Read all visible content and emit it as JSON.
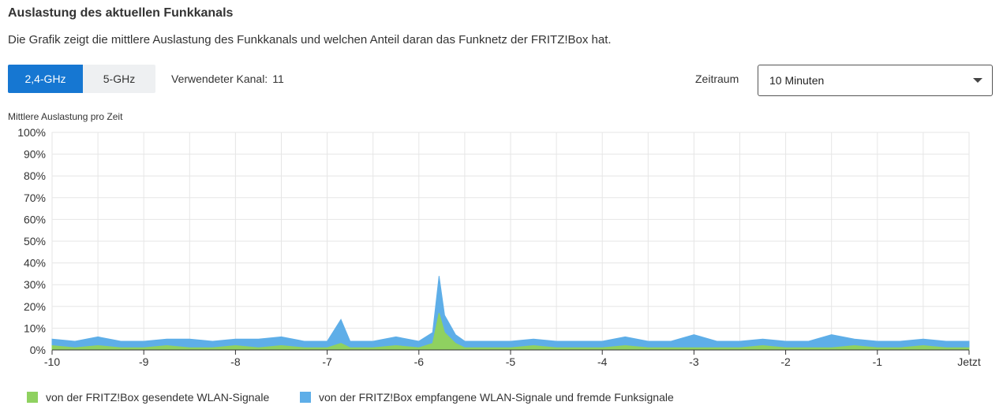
{
  "header": {
    "title": "Auslastung des aktuellen Funkkanals",
    "description": "Die Grafik zeigt die mittlere Auslastung des Funkkanals und welchen Anteil daran das Funknetz der FRITZ!Box hat."
  },
  "controls": {
    "bands": [
      {
        "label": "2,4-GHz",
        "active": true
      },
      {
        "label": "5-GHz",
        "active": false
      }
    ],
    "channel_label": "Verwendeter Kanal:",
    "channel_value": "11",
    "zeitraum_label": "Zeitraum",
    "zeitraum_value": "10 Minuten"
  },
  "chart_title": "Mittlere Auslastung pro Zeit",
  "colors": {
    "accent": "#1677d2",
    "series_sent": "#8fd160",
    "series_received": "#5eaee8",
    "grid": "#e6e6e6"
  },
  "chart_data": {
    "type": "area",
    "stacked": true,
    "title": "Mittlere Auslastung pro Zeit",
    "xlim": [
      -10,
      0
    ],
    "ylim": [
      0,
      100
    ],
    "yticks": [
      "0%",
      "10%",
      "20%",
      "30%",
      "40%",
      "50%",
      "60%",
      "70%",
      "80%",
      "90%",
      "100%"
    ],
    "xticks": [
      "-10",
      "-9",
      "-8",
      "-7",
      "-6",
      "-5",
      "-4",
      "-3",
      "-2",
      "-1",
      "Jetzt"
    ],
    "grid": true,
    "legend_position": "bottom",
    "series": [
      {
        "name": "von der FRITZ!Box gesendete WLAN-Signale",
        "color": "#8fd160",
        "x": [
          -10,
          -9.75,
          -9.5,
          -9.25,
          -9,
          -8.75,
          -8.5,
          -8.25,
          -8,
          -7.75,
          -7.5,
          -7.25,
          -7,
          -6.85,
          -6.75,
          -6.5,
          -6.25,
          -6,
          -5.85,
          -5.78,
          -5.72,
          -5.6,
          -5.5,
          -5.25,
          -5,
          -4.75,
          -4.5,
          -4.25,
          -4,
          -3.75,
          -3.5,
          -3.25,
          -3,
          -2.75,
          -2.5,
          -2.25,
          -2,
          -1.75,
          -1.5,
          -1.25,
          -1,
          -0.75,
          -0.5,
          -0.25,
          0
        ],
        "y": [
          2,
          1,
          2,
          1,
          1,
          2,
          1,
          1,
          2,
          1,
          2,
          1,
          1,
          3,
          1,
          1,
          2,
          1,
          3,
          17,
          8,
          3,
          1,
          1,
          1,
          2,
          1,
          1,
          1,
          2,
          1,
          1,
          1,
          1,
          1,
          2,
          1,
          1,
          1,
          2,
          1,
          1,
          2,
          1,
          1
        ]
      },
      {
        "name": "von der FRITZ!Box empfangene WLAN-Signale und fremde Funksignale",
        "color": "#5eaee8",
        "x": [
          -10,
          -9.75,
          -9.5,
          -9.25,
          -9,
          -8.75,
          -8.5,
          -8.25,
          -8,
          -7.75,
          -7.5,
          -7.25,
          -7,
          -6.85,
          -6.75,
          -6.5,
          -6.25,
          -6,
          -5.85,
          -5.78,
          -5.72,
          -5.6,
          -5.5,
          -5.25,
          -5,
          -4.75,
          -4.5,
          -4.25,
          -4,
          -3.75,
          -3.5,
          -3.25,
          -3,
          -2.75,
          -2.5,
          -2.25,
          -2,
          -1.75,
          -1.5,
          -1.25,
          -1,
          -0.75,
          -0.5,
          -0.25,
          0
        ],
        "y": [
          3,
          3,
          4,
          3,
          3,
          3,
          4,
          3,
          3,
          4,
          4,
          3,
          3,
          11,
          3,
          3,
          4,
          3,
          5,
          17,
          8,
          4,
          3,
          3,
          3,
          3,
          3,
          3,
          3,
          4,
          3,
          3,
          6,
          3,
          3,
          3,
          3,
          3,
          6,
          3,
          3,
          3,
          3,
          3,
          3
        ]
      }
    ]
  }
}
